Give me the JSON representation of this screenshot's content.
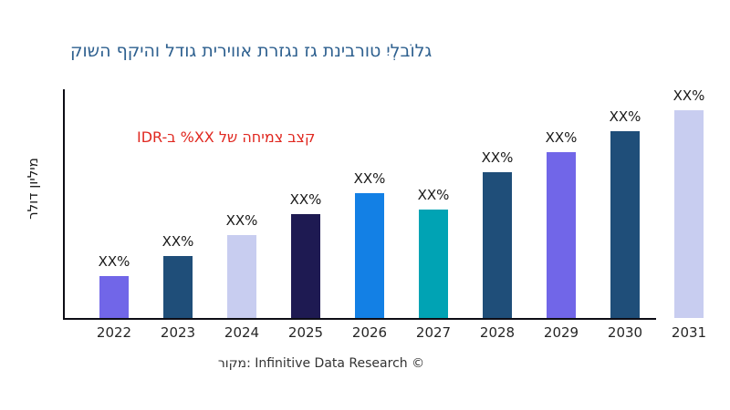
{
  "title": {
    "text": "קושה ףקיהו לדוג תיריווא תרזגנ זג תניברוט יִלְבוֹלג",
    "color": "#2e608f"
  },
  "annotation": {
    "text": "IDR-ב %XX לש החימצ בצק",
    "color": "#e02820"
  },
  "footer": {
    "text": "רוקמ: Infinitive Data Research ©"
  },
  "chart_data": {
    "type": "bar",
    "title": "קושה ףקיהו לדוג תיריווא תרזגנ זג תניברוט יִלְבוֹלג",
    "xlabel": "",
    "ylabel": "רלוד ןוילימ",
    "categories": [
      "2022",
      "2023",
      "2024",
      "2025",
      "2026",
      "2027",
      "2028",
      "2029",
      "2030",
      "2031"
    ],
    "series": [
      {
        "name": "market-size",
        "values": [
          20,
          30,
          40,
          50,
          60,
          52,
          70,
          80,
          90,
          100
        ],
        "units": "relative bar height, % of tallest (2031) bar; printed labels are XX% placeholders"
      }
    ],
    "bar_value_label": "XX%",
    "bar_colors": [
      "#7166e8",
      "#1f4e79",
      "#c8cdf0",
      "#1e1a52",
      "#1380e5",
      "#00a3b4",
      "#1f4e79",
      "#7166e8",
      "#1f4e79",
      "#c8cdf0"
    ],
    "ylim": [
      0,
      105
    ],
    "grid": false,
    "legend": false,
    "y_tick_labels": []
  }
}
